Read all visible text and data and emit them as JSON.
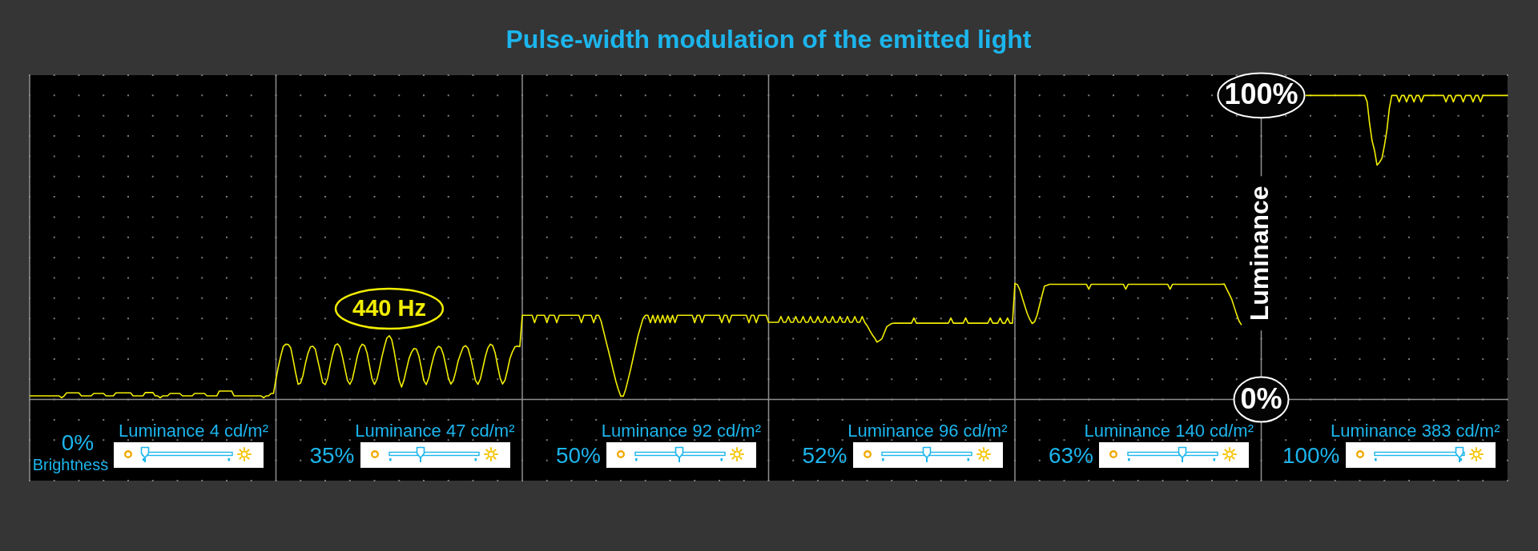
{
  "chart_data": {
    "type": "line",
    "title": "Pulse-width modulation of the emitted light",
    "ylabel": "Luminance",
    "categories": [
      null,
      null,
      null,
      null,
      null,
      null,
      null,
      null,
      null,
      null,
      null,
      null,
      null,
      null,
      null,
      null,
      null,
      null,
      null,
      null,
      null,
      null,
      null,
      null,
      null,
      null,
      null,
      null,
      null,
      null,
      null,
      null,
      null,
      null,
      null,
      null,
      null,
      null,
      null,
      null,
      null,
      null,
      null,
      null,
      null,
      null,
      null,
      null,
      null,
      null,
      null,
      null,
      null,
      null,
      null,
      null,
      null,
      null,
      null,
      null,
      null,
      null,
      null,
      null,
      null,
      null,
      null,
      null,
      null,
      null,
      null,
      null,
      null,
      null,
      null,
      null,
      null,
      null,
      null,
      null,
      null,
      null,
      null,
      null,
      null,
      null,
      null,
      null,
      null,
      null,
      null,
      null,
      null,
      null,
      null,
      null,
      null,
      null,
      null,
      null,
      null,
      null,
      null,
      null,
      null,
      null,
      null,
      null,
      null,
      null,
      null,
      null,
      null,
      null,
      null,
      null,
      null,
      null,
      null,
      null,
      null,
      null,
      null,
      null,
      null,
      null,
      null,
      null,
      null,
      null,
      null,
      null,
      null,
      null,
      null,
      null,
      null,
      null,
      null,
      null,
      null,
      null,
      null,
      null,
      null,
      null,
      null,
      null,
      null,
      null,
      null,
      null,
      null,
      null,
      null,
      null,
      null,
      null,
      null,
      null,
      null,
      null,
      null,
      null,
      null,
      null,
      null,
      null,
      null,
      null,
      null,
      null,
      null,
      null,
      null,
      null,
      null,
      null,
      null,
      null,
      null,
      null,
      null,
      null,
      null,
      null,
      null,
      null,
      null,
      null,
      null,
      null,
      null,
      null,
      null,
      null,
      null,
      null,
      null,
      null,
      null,
      null,
      null,
      null,
      null,
      null,
      null,
      null,
      null,
      null,
      null,
      null,
      null,
      null,
      null,
      null,
      null,
      null,
      null,
      null,
      null,
      null,
      null,
      null,
      null,
      null,
      null,
      null,
      null,
      null,
      null,
      null,
      null,
      null,
      null,
      null,
      null,
      null,
      null,
      null,
      null,
      null,
      null,
      null,
      null,
      null,
      null,
      null,
      null,
      null,
      null,
      null,
      null,
      null,
      null,
      null,
      null,
      null,
      null,
      null,
      null,
      null,
      null,
      null,
      null,
      null,
      null,
      null,
      null,
      null,
      null,
      null,
      null,
      null,
      null,
      null,
      null,
      null,
      null,
      null,
      null,
      null,
      null,
      null,
      null,
      null,
      null,
      null,
      null,
      null,
      null,
      null,
      null,
      null,
      null,
      null,
      null,
      null,
      null,
      null,
      null,
      null,
      null,
      null,
      null,
      null,
      null,
      null,
      null,
      null,
      null,
      null,
      null,
      null,
      null,
      null,
      null,
      null,
      null,
      null,
      null,
      null,
      null,
      null,
      null,
      null,
      null,
      null,
      null,
      null,
      null,
      null,
      null,
      null,
      null,
      null,
      null,
      null,
      null,
      null,
      null,
      null,
      null,
      null,
      null,
      null,
      null,
      null,
      null,
      null,
      null,
      null,
      null,
      null,
      null,
      null,
      null,
      null,
      null,
      null,
      null,
      null,
      null,
      null,
      null,
      null,
      null,
      null,
      null,
      null,
      null,
      null,
      null,
      null,
      null,
      null,
      null,
      null,
      null,
      null,
      null,
      null,
      null,
      null,
      null,
      null,
      null,
      null,
      null,
      null,
      null,
      null,
      null,
      null,
      null,
      null,
      null,
      null,
      null,
      null,
      null,
      null,
      null,
      null,
      null,
      null,
      null,
      null,
      null,
      null,
      null,
      null,
      null,
      null,
      null,
      null,
      null,
      null,
      null,
      null,
      null,
      null,
      null,
      null,
      null,
      null,
      null,
      null,
      null,
      null,
      null,
      null,
      null,
      null,
      null,
      null,
      null,
      null,
      null,
      null,
      null,
      null,
      null,
      null,
      null,
      null,
      null,
      null,
      null,
      null,
      null,
      null,
      null,
      null,
      null,
      null,
      null,
      null,
      null,
      null,
      null,
      null,
      null,
      null,
      null,
      null,
      null,
      null,
      null,
      null,
      null,
      null,
      null,
      null,
      null,
      null,
      null,
      null,
      null,
      null,
      null,
      null,
      null,
      null,
      null,
      null,
      null,
      null,
      null,
      null,
      null,
      null,
      null,
      null,
      null,
      null,
      null,
      null,
      null,
      null,
      null,
      null,
      null,
      null,
      null,
      null,
      null,
      null,
      null,
      null,
      null,
      null,
      null,
      null,
      null,
      null,
      null,
      null,
      null,
      null,
      null,
      null,
      null,
      null,
      null,
      null,
      null,
      null,
      null,
      null,
      null,
      null,
      null,
      null,
      null,
      null,
      null,
      null,
      null,
      null,
      null,
      null,
      null,
      null,
      null,
      null,
      null,
      null,
      null,
      null,
      null,
      null,
      null,
      null,
      null,
      null,
      null,
      null,
      null,
      null,
      null,
      null,
      null,
      null,
      null,
      null,
      null,
      null,
      null,
      null,
      null,
      null,
      null,
      null,
      null,
      null,
      null,
      null,
      null,
      null,
      null,
      null,
      null,
      null,
      null,
      null,
      null,
      null,
      null,
      null,
      null,
      null,
      null,
      null,
      null,
      null,
      null,
      null,
      null,
      null,
      null
    ],
    "ylim": [
      -26.67,
      106.67
    ],
    "yticks": [
      {
        "value": -26.67,
        "label": null
      },
      {
        "value": -20,
        "label": null
      },
      {
        "value": -13.33,
        "label": null
      },
      {
        "value": -6.67,
        "label": null
      },
      {
        "value": 0,
        "label": "0%"
      },
      {
        "value": 6.67,
        "label": null
      },
      {
        "value": 13.33,
        "label": null
      },
      {
        "value": 20,
        "label": null
      },
      {
        "value": 26.67,
        "label": null
      },
      {
        "value": 33.33,
        "label": null
      },
      {
        "value": 40,
        "label": null
      },
      {
        "value": 46.67,
        "label": null
      },
      {
        "value": 53.33,
        "label": null
      },
      {
        "value": 60,
        "label": null
      },
      {
        "value": 66.67,
        "label": null
      },
      {
        "value": 73.33,
        "label": null
      },
      {
        "value": 80,
        "label": null
      },
      {
        "value": 86.67,
        "label": null
      },
      {
        "value": 93.33,
        "label": null
      },
      {
        "value": 100,
        "label": "100%"
      },
      {
        "value": 106.67,
        "label": null
      }
    ],
    "tick_labels": "y",
    "grid": "y",
    "series": [
      {
        "color": "#f2ee00",
        "values": [
          1.2,
          1.2,
          1.2,
          1.2,
          1.2,
          1.2,
          1.2,
          1.2,
          1.2,
          1.2,
          1.2,
          1.2,
          1.2,
          0.6,
          1.2,
          2.2,
          2.2,
          2.2,
          2.2,
          2.2,
          2.2,
          1.2,
          1.2,
          1.2,
          1.2,
          1.2,
          2.0,
          2.0,
          2.0,
          2.0,
          2.0,
          1.2,
          1.2,
          1.2,
          1.2,
          2.2,
          2.2,
          2.2,
          2.2,
          2.2,
          2.2,
          2.2,
          1.2,
          1.2,
          1.2,
          1.2,
          1.2,
          2.3,
          2.3,
          2.3,
          2.3,
          1.2,
          1.2,
          0.6,
          1.2,
          1.2,
          1.2,
          2.0,
          2.0,
          2.0,
          2.0,
          2.0,
          1.2,
          1.2,
          1.2,
          1.2,
          1.2,
          2.0,
          2.0,
          2.0,
          2.0,
          2.0,
          1.2,
          1.2,
          1.2,
          1.2,
          1.2,
          2.8,
          2.8,
          2.8,
          2.8,
          2.8,
          2.8,
          1.2,
          1.2,
          1.2,
          1.2,
          1.2,
          1.2,
          1.2,
          1.2,
          1.2,
          1.2,
          1.2,
          1.2,
          0.6,
          1.2,
          1.2,
          2.0,
          2.0,
          6.7,
          10.9,
          14.5,
          17.5,
          18.2,
          18.1,
          17,
          13,
          8.7,
          5.0,
          5.4,
          8,
          12,
          15.2,
          17.3,
          17.5,
          16.5,
          12.8,
          9.2,
          5.5,
          4.9,
          7,
          11.3,
          14.9,
          17.8,
          18.3,
          17.3,
          14,
          10.2,
          6.3,
          5.0,
          6.6,
          10.3,
          14.1,
          16.9,
          18.2,
          17.7,
          15.3,
          11,
          6.8,
          5.0,
          6.6,
          10.1,
          14,
          17.3,
          20.2,
          21,
          19.7,
          15.8,
          11.1,
          6.4,
          4.1,
          6.5,
          10,
          13.4,
          15.5,
          16.8,
          16.6,
          14.4,
          10.5,
          6.3,
          4.9,
          7,
          10.8,
          14,
          16.5,
          17.5,
          17,
          14.7,
          11,
          7.1,
          5.1,
          6.2,
          9.2,
          12.8,
          15.1,
          17.2,
          17.7,
          16.8,
          13.9,
          10.2,
          6.3,
          5.0,
          6.8,
          10.4,
          14.1,
          16.9,
          18.2,
          17.7,
          15.3,
          11,
          7.1,
          5.1,
          6.4,
          9.7,
          13.5,
          15.7,
          17.3,
          17.6,
          17.4,
          27.7,
          27.7,
          27.7,
          27.7,
          27.7,
          25.3,
          27.7,
          27.7,
          27.7,
          27.7,
          25.3,
          27.7,
          27.7,
          27.7,
          25.3,
          27.7,
          27.7,
          27.7,
          27.7,
          27.7,
          27.7,
          27.7,
          27.7,
          27.7,
          25.3,
          27.7,
          27.7,
          27.7,
          27.7,
          25.3,
          27.7,
          27.7,
          25.8,
          22.5,
          19.2,
          16,
          12.7,
          9.3,
          6,
          3.3,
          1.1,
          1.1,
          3.4,
          6.7,
          10,
          13.7,
          17.3,
          21,
          23.8,
          26.6,
          27.7,
          27.7,
          25.3,
          27.7,
          25.3,
          27.7,
          25.3,
          27.7,
          25.3,
          27.7,
          25.3,
          27.7,
          25.3,
          27.7,
          27.7,
          27.7,
          27.7,
          27.7,
          27.7,
          27.7,
          25.3,
          27.7,
          27.7,
          25.3,
          27.7,
          27.7,
          27.7,
          27.7,
          27.7,
          27.7,
          27.7,
          25.3,
          27.7,
          27.7,
          25.3,
          27.7,
          27.7,
          27.7,
          27.7,
          27.7,
          27.7,
          27.7,
          25.3,
          27.7,
          27.7,
          25.3,
          27.7,
          27.7,
          27.7,
          27.7,
          25.4,
          25.4,
          25.4,
          25.4,
          25.4,
          27.3,
          25.4,
          25.4,
          27.3,
          25.4,
          25.4,
          27.3,
          25.4,
          25.4,
          27.3,
          25.4,
          25.4,
          27.3,
          25.4,
          25.4,
          27.3,
          25.4,
          25.4,
          27.3,
          25.4,
          25.4,
          27.3,
          25.4,
          25.4,
          27.3,
          25.4,
          25.4,
          27.3,
          25.4,
          25.4,
          27.3,
          25.4,
          25.4,
          27.3,
          25.4,
          24.3,
          22.8,
          21.4,
          20.3,
          18.9,
          19.4,
          20,
          22,
          24,
          24.5,
          25.0,
          25.1,
          25.1,
          25.1,
          25.1,
          25.1,
          25.1,
          25.1,
          25.1,
          26.8,
          25.1,
          25.1,
          25.1,
          25.1,
          25.1,
          25.1,
          25.1,
          25.1,
          25.1,
          25.1,
          25.1,
          25.1,
          25.1,
          25.1,
          26.8,
          25.1,
          25.1,
          25.1,
          25.1,
          25.1,
          26.8,
          25.1,
          25.1,
          25.1,
          25.1,
          25.1,
          25.1,
          25.1,
          25.1,
          25.1,
          26.8,
          25.1,
          25.1,
          25.1,
          26.8,
          25.1,
          25.1,
          26.8,
          25.1,
          25.1,
          38.2,
          37.8,
          36.1,
          33.4,
          30.8,
          28.3,
          26.4,
          25.0,
          25.6,
          27.7,
          31,
          34.2,
          37.3,
          37.6,
          37.9,
          37.9,
          37.9,
          37.9,
          37.9,
          37.9,
          37.9,
          37.9,
          37.9,
          37.9,
          37.9,
          37.9,
          37.9,
          37.9,
          37.9,
          37.9,
          36.3,
          37.9,
          37.9,
          37.9,
          37.9,
          37.9,
          37.9,
          37.9,
          37.9,
          37.9,
          37.9,
          37.9,
          37.9,
          37.9,
          37.9,
          36.3,
          37.9,
          37.9,
          37.9,
          37.9,
          37.9,
          37.9,
          37.9,
          37.9,
          37.9,
          37.9,
          37.9,
          37.9,
          37.9,
          37.9,
          37.9,
          37.9,
          37.9,
          36.3,
          37.9,
          37.9,
          37.9,
          37.9,
          37.9,
          37.9,
          37.9,
          37.9,
          37.9,
          37.9,
          37.9,
          37.9,
          37.9,
          37.9,
          37.9,
          37.9,
          37.9,
          37.9,
          37.9,
          37.9,
          37.9,
          38.0,
          36.3,
          34.7,
          33,
          30.5,
          28,
          25.8,
          24.5,
          null,
          null,
          null,
          null,
          null,
          null,
          null,
          null,
          null,
          null,
          null,
          null,
          null,
          null,
          null,
          null,
          null,
          null,
          null,
          null,
          null,
          null,
          null,
          null,
          null,
          null,
          null,
          null,
          null,
          null,
          null,
          null,
          null,
          null,
          null,
          null,
          null,
          null,
          null,
          null,
          null,
          null,
          null,
          null,
          null,
          null,
          null,
          null,
          null,
          null,
          null,
          null,
          null,
          null,
          null,
          null,
          null,
          null,
          null,
          null,
          null,
          null,
          null,
          null,
          null,
          null,
          null,
          null,
          null,
          null,
          null,
          null,
          null,
          null,
          null,
          null,
          null,
          null,
          null,
          null,
          null,
          null,
          null,
          null,
          null,
          null,
          null,
          null,
          null,
          null,
          null,
          null,
          null,
          null,
          null,
          null,
          null,
          null,
          null,
          null,
          null,
          null,
          null,
          null,
          null,
          null,
          null,
          null
        ]
      },
      {
        "color": "#f2ee00",
        "values": [
          null,
          null,
          null,
          null,
          null,
          null,
          null,
          null,
          null,
          null,
          null,
          null,
          null,
          null,
          null,
          null,
          null,
          null,
          null,
          null,
          null,
          null,
          null,
          null,
          null,
          null,
          null,
          null,
          null,
          null,
          null,
          null,
          null,
          null,
          null,
          null,
          null,
          null,
          null,
          null,
          null,
          null,
          null,
          null,
          null,
          null,
          null,
          null,
          null,
          null,
          null,
          null,
          null,
          null,
          null,
          null,
          null,
          null,
          null,
          null,
          null,
          null,
          null,
          null,
          null,
          null,
          null,
          null,
          null,
          null,
          null,
          null,
          null,
          null,
          null,
          null,
          null,
          null,
          null,
          null,
          null,
          null,
          null,
          null,
          null,
          null,
          null,
          null,
          null,
          null,
          null,
          null,
          null,
          null,
          null,
          null,
          null,
          null,
          null,
          null,
          null,
          null,
          null,
          null,
          null,
          null,
          null,
          null,
          null,
          null,
          null,
          null,
          null,
          null,
          null,
          null,
          null,
          null,
          null,
          null,
          null,
          null,
          null,
          null,
          null,
          null,
          null,
          null,
          null,
          null,
          null,
          null,
          null,
          null,
          null,
          null,
          null,
          null,
          null,
          null,
          null,
          null,
          null,
          null,
          null,
          null,
          null,
          null,
          null,
          null,
          null,
          null,
          null,
          null,
          null,
          null,
          null,
          null,
          null,
          null,
          null,
          null,
          null,
          null,
          null,
          null,
          null,
          null,
          null,
          null,
          null,
          null,
          null,
          null,
          null,
          null,
          null,
          null,
          null,
          null,
          null,
          null,
          null,
          null,
          null,
          null,
          null,
          null,
          null,
          null,
          null,
          null,
          null,
          null,
          null,
          null,
          null,
          null,
          null,
          null,
          null,
          null,
          null,
          null,
          null,
          null,
          null,
          null,
          null,
          null,
          null,
          null,
          null,
          null,
          null,
          null,
          null,
          null,
          null,
          null,
          null,
          null,
          null,
          null,
          null,
          null,
          null,
          null,
          null,
          null,
          null,
          null,
          null,
          null,
          null,
          null,
          null,
          null,
          null,
          null,
          null,
          null,
          null,
          null,
          null,
          null,
          null,
          null,
          null,
          null,
          null,
          null,
          null,
          null,
          null,
          null,
          null,
          null,
          null,
          null,
          null,
          null,
          null,
          null,
          null,
          null,
          null,
          null,
          null,
          null,
          null,
          null,
          null,
          null,
          null,
          null,
          null,
          null,
          null,
          null,
          null,
          null,
          null,
          null,
          null,
          null,
          null,
          null,
          null,
          null,
          null,
          null,
          null,
          null,
          null,
          null,
          null,
          null,
          null,
          null,
          null,
          null,
          null,
          null,
          null,
          null,
          null,
          null,
          null,
          null,
          null,
          null,
          null,
          null,
          null,
          null,
          null,
          null,
          null,
          null,
          null,
          null,
          null,
          null,
          null,
          null,
          null,
          null,
          null,
          null,
          null,
          null,
          null,
          null,
          null,
          null,
          null,
          null,
          null,
          null,
          null,
          null,
          null,
          null,
          null,
          null,
          null,
          null,
          null,
          null,
          null,
          null,
          null,
          null,
          null,
          null,
          null,
          null,
          null,
          null,
          null,
          null,
          null,
          null,
          null,
          null,
          null,
          null,
          null,
          null,
          null,
          null,
          null,
          null,
          null,
          null,
          null,
          null,
          null,
          null,
          null,
          null,
          null,
          null,
          null,
          null,
          null,
          null,
          null,
          null,
          null,
          null,
          null,
          null,
          null,
          null,
          null,
          null,
          null,
          null,
          null,
          null,
          null,
          null,
          null,
          null,
          null,
          null,
          null,
          null,
          null,
          null,
          null,
          null,
          null,
          null,
          null,
          null,
          null,
          null,
          null,
          null,
          null,
          null,
          null,
          null,
          null,
          null,
          null,
          null,
          null,
          null,
          null,
          null,
          null,
          null,
          null,
          null,
          null,
          null,
          null,
          null,
          null,
          null,
          null,
          null,
          null,
          null,
          null,
          null,
          null,
          null,
          null,
          null,
          null,
          null,
          null,
          null,
          null,
          null,
          null,
          null,
          null,
          null,
          null,
          null,
          null,
          null,
          null,
          null,
          null,
          null,
          null,
          null,
          null,
          null,
          null,
          null,
          null,
          null,
          null,
          null,
          null,
          null,
          null,
          null,
          null,
          null,
          null,
          null,
          null,
          null,
          null,
          null,
          null,
          null,
          null,
          null,
          null,
          null,
          null,
          null,
          null,
          null,
          null,
          null,
          null,
          null,
          null,
          null,
          null,
          null,
          null,
          null,
          null,
          null,
          null,
          null,
          100,
          100,
          100,
          100,
          100,
          100,
          100,
          100,
          100,
          100,
          100,
          100,
          100,
          100,
          100,
          100,
          100,
          100,
          100,
          100,
          100,
          100,
          100,
          100,
          100,
          97.9,
          90.7,
          85.1,
          81.9,
          77.1,
          78.0,
          79.3,
          83.5,
          88.5,
          95.7,
          100,
          100,
          100,
          97.9,
          100,
          100,
          97.9,
          100,
          100,
          97.9,
          100,
          100,
          97.9,
          100,
          100,
          100,
          100,
          100,
          100,
          100,
          100,
          100,
          97.9,
          100,
          100,
          97.9,
          100,
          100,
          100,
          97.9,
          100,
          100,
          100,
          97.9,
          100,
          100,
          97.9,
          100,
          100,
          100,
          100,
          100,
          100,
          100,
          100,
          100,
          100,
          100
        ]
      }
    ],
    "annotations": [
      "440 Hz",
      "Luminance 4 cd/m²",
      "0%",
      "Brightness",
      "Luminance 47 cd/m²",
      "35%",
      "Luminance 92 cd/m²",
      "50%",
      "Luminance 96 cd/m²",
      "52%",
      "Luminance 140 cd/m²",
      "63%",
      "Luminance 383 cd/m²",
      "100%"
    ]
  }
}
